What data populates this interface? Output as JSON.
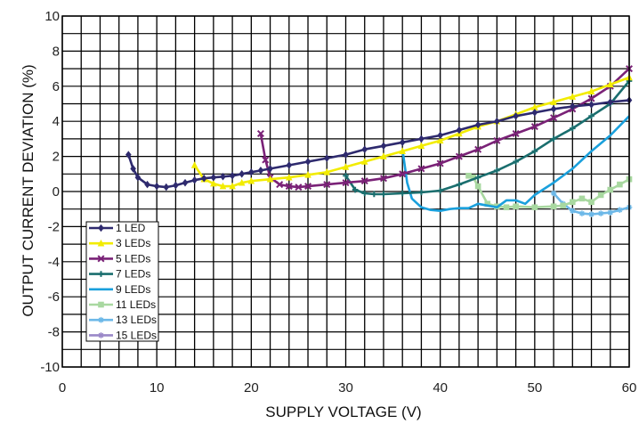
{
  "chart_data": {
    "type": "line",
    "title": "",
    "xlabel": "SUPPLY VOLTAGE (V)",
    "ylabel": "OUTPUT CURRENT DEVIATION (%)",
    "xlim": [
      0,
      60
    ],
    "ylim": [
      -10,
      10
    ],
    "x_ticks": [
      0,
      10,
      20,
      30,
      40,
      50,
      60
    ],
    "y_ticks": [
      -10,
      -8,
      -6,
      -4,
      -2,
      0,
      2,
      4,
      6,
      8,
      10
    ],
    "grid": true,
    "legend_position": "lower-left",
    "series": [
      {
        "name": "1 LED",
        "color": "#2e2a6e",
        "marker": "diamond",
        "points": [
          [
            7,
            2.1
          ],
          [
            7.5,
            1.3
          ],
          [
            8,
            0.8
          ],
          [
            9,
            0.4
          ],
          [
            10,
            0.3
          ],
          [
            11,
            0.25
          ],
          [
            12,
            0.35
          ],
          [
            13,
            0.5
          ],
          [
            14,
            0.65
          ],
          [
            15,
            0.75
          ],
          [
            16,
            0.8
          ],
          [
            17,
            0.85
          ],
          [
            18,
            0.9
          ],
          [
            19,
            1.0
          ],
          [
            20,
            1.1
          ],
          [
            21,
            1.2
          ],
          [
            22,
            1.3
          ],
          [
            24,
            1.5
          ],
          [
            26,
            1.7
          ],
          [
            28,
            1.9
          ],
          [
            30,
            2.1
          ],
          [
            32,
            2.4
          ],
          [
            34,
            2.6
          ],
          [
            36,
            2.8
          ],
          [
            38,
            3.0
          ],
          [
            40,
            3.2
          ],
          [
            42,
            3.5
          ],
          [
            44,
            3.8
          ],
          [
            46,
            4.0
          ],
          [
            48,
            4.3
          ],
          [
            50,
            4.5
          ],
          [
            52,
            4.7
          ],
          [
            54,
            4.85
          ],
          [
            56,
            4.95
          ],
          [
            58,
            5.1
          ],
          [
            60,
            5.2
          ]
        ]
      },
      {
        "name": "3 LEDs",
        "color": "#f2ec00",
        "marker": "triangle",
        "points": [
          [
            14,
            1.5
          ],
          [
            15,
            0.7
          ],
          [
            16,
            0.45
          ],
          [
            17,
            0.3
          ],
          [
            18,
            0.3
          ],
          [
            19,
            0.5
          ],
          [
            20,
            0.6
          ],
          [
            22,
            0.7
          ],
          [
            24,
            0.8
          ],
          [
            26,
            0.95
          ],
          [
            28,
            1.1
          ],
          [
            30,
            1.4
          ],
          [
            32,
            1.7
          ],
          [
            34,
            2.0
          ],
          [
            36,
            2.3
          ],
          [
            38,
            2.6
          ],
          [
            40,
            2.9
          ],
          [
            42,
            3.3
          ],
          [
            44,
            3.7
          ],
          [
            46,
            4.0
          ],
          [
            48,
            4.4
          ],
          [
            50,
            4.8
          ],
          [
            52,
            5.1
          ],
          [
            54,
            5.4
          ],
          [
            56,
            5.7
          ],
          [
            58,
            6.1
          ],
          [
            60,
            6.5
          ]
        ]
      },
      {
        "name": "5 LEDs",
        "color": "#7a2277",
        "marker": "x",
        "points": [
          [
            21,
            3.3
          ],
          [
            21.5,
            1.8
          ],
          [
            22,
            0.8
          ],
          [
            23,
            0.4
          ],
          [
            24,
            0.3
          ],
          [
            25,
            0.25
          ],
          [
            26,
            0.3
          ],
          [
            28,
            0.4
          ],
          [
            30,
            0.5
          ],
          [
            32,
            0.6
          ],
          [
            34,
            0.75
          ],
          [
            36,
            1.0
          ],
          [
            38,
            1.3
          ],
          [
            40,
            1.6
          ],
          [
            42,
            2.0
          ],
          [
            44,
            2.4
          ],
          [
            46,
            2.9
          ],
          [
            48,
            3.3
          ],
          [
            50,
            3.7
          ],
          [
            52,
            4.2
          ],
          [
            54,
            4.7
          ],
          [
            56,
            5.3
          ],
          [
            58,
            6.0
          ],
          [
            60,
            7.0
          ]
        ]
      },
      {
        "name": "7 LEDs",
        "color": "#1a6e6e",
        "marker": "plus",
        "points": [
          [
            30,
            0.9
          ],
          [
            31,
            0.1
          ],
          [
            32,
            -0.1
          ],
          [
            33,
            -0.15
          ],
          [
            34,
            -0.15
          ],
          [
            36,
            -0.1
          ],
          [
            38,
            -0.05
          ],
          [
            40,
            0.05
          ],
          [
            42,
            0.4
          ],
          [
            44,
            0.8
          ],
          [
            46,
            1.2
          ],
          [
            48,
            1.7
          ],
          [
            50,
            2.3
          ],
          [
            52,
            3.0
          ],
          [
            54,
            3.6
          ],
          [
            56,
            4.3
          ],
          [
            58,
            5.0
          ],
          [
            60,
            6.3
          ]
        ]
      },
      {
        "name": "9 LEDs",
        "color": "#1aa0dc",
        "marker": "none",
        "points": [
          [
            36,
            2.4
          ],
          [
            36.5,
            0.5
          ],
          [
            37,
            -0.4
          ],
          [
            38,
            -0.9
          ],
          [
            39,
            -1.05
          ],
          [
            40,
            -1.1
          ],
          [
            41,
            -1.0
          ],
          [
            42,
            -0.95
          ],
          [
            43,
            -0.95
          ],
          [
            44,
            -0.7
          ],
          [
            45,
            -0.8
          ],
          [
            46,
            -0.9
          ],
          [
            47,
            -0.5
          ],
          [
            48,
            -0.5
          ],
          [
            49,
            -0.7
          ],
          [
            50,
            -0.2
          ],
          [
            52,
            0.5
          ],
          [
            54,
            1.3
          ],
          [
            56,
            2.3
          ],
          [
            58,
            3.2
          ],
          [
            60,
            4.3
          ]
        ]
      },
      {
        "name": "11 LEDs",
        "color": "#a8d8a0",
        "marker": "square",
        "points": [
          [
            43,
            0.9
          ],
          [
            43.5,
            0.8
          ],
          [
            44,
            0.3
          ],
          [
            45,
            -0.7
          ],
          [
            46,
            -0.85
          ],
          [
            47,
            -0.9
          ],
          [
            48,
            -0.85
          ],
          [
            50,
            -0.9
          ],
          [
            52,
            -0.85
          ],
          [
            53,
            -0.8
          ],
          [
            54,
            -0.6
          ],
          [
            55,
            -0.4
          ],
          [
            56,
            -0.6
          ],
          [
            57,
            -0.2
          ],
          [
            58,
            0.1
          ],
          [
            59,
            0.4
          ],
          [
            60,
            0.7
          ]
        ]
      },
      {
        "name": "13 LEDs",
        "color": "#6cb8e8",
        "marker": "star",
        "points": [
          [
            52,
            -0.1
          ],
          [
            53,
            -0.7
          ],
          [
            54,
            -1.1
          ],
          [
            55,
            -1.25
          ],
          [
            56,
            -1.3
          ],
          [
            57,
            -1.25
          ],
          [
            58,
            -1.2
          ],
          [
            59,
            -1.05
          ],
          [
            60,
            -0.9
          ]
        ]
      },
      {
        "name": "15 LEDs",
        "color": "#9a88c8",
        "marker": "star",
        "points": []
      }
    ]
  }
}
